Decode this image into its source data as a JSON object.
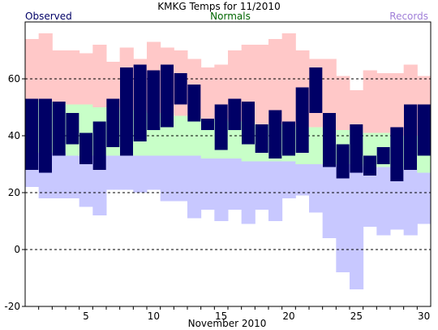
{
  "chart_data": {
    "type": "bar",
    "title": "KMKG Temps for 11/2010",
    "xlabel": "November 2010",
    "ylabel": "",
    "legend": {
      "observed": "Observed",
      "normals": "Normals",
      "records": "Records",
      "placement": "top"
    },
    "colors": {
      "observed": "#000066",
      "normals": "#c8ffc8",
      "record_high": "#ffc8c8",
      "record_low": "#c8c8ff",
      "grid": "#000000",
      "axis": "#000000"
    },
    "xlim": [
      1,
      30
    ],
    "ylim": [
      -20,
      80
    ],
    "yticks": [
      -20,
      0,
      20,
      40,
      60
    ],
    "xticks": [
      5,
      10,
      15,
      20,
      25,
      30
    ],
    "grid": "dashed horizontal at 0, 20, 40, 60",
    "days": [
      1,
      2,
      3,
      4,
      5,
      6,
      7,
      8,
      9,
      10,
      11,
      12,
      13,
      14,
      15,
      16,
      17,
      18,
      19,
      20,
      21,
      22,
      23,
      24,
      25,
      26,
      27,
      28,
      29,
      30
    ],
    "observed_high": [
      53,
      53,
      52,
      48,
      41,
      45,
      53,
      64,
      65,
      63,
      65,
      62,
      58,
      46,
      51,
      53,
      52,
      44,
      49,
      45,
      57,
      64,
      48,
      37,
      44,
      33,
      36,
      43,
      51,
      51
    ],
    "observed_low": [
      28,
      27,
      33,
      37,
      30,
      28,
      36,
      33,
      38,
      42,
      43,
      51,
      45,
      42,
      35,
      42,
      37,
      34,
      32,
      33,
      34,
      48,
      29,
      25,
      27,
      26,
      30,
      24,
      28,
      33
    ],
    "normal_high": [
      53,
      52,
      52,
      51,
      51,
      50,
      50,
      49,
      49,
      48,
      48,
      47,
      47,
      46,
      46,
      45,
      45,
      44,
      44,
      44,
      43,
      43,
      42,
      42,
      42,
      41,
      41,
      40,
      40,
      40
    ],
    "normal_low": [
      34,
      34,
      34,
      33,
      33,
      33,
      33,
      33,
      33,
      33,
      33,
      33,
      33,
      32,
      32,
      32,
      31,
      31,
      31,
      31,
      30,
      30,
      30,
      30,
      30,
      29,
      29,
      29,
      28,
      27
    ],
    "record_high": [
      74,
      76,
      70,
      70,
      69,
      72,
      66,
      71,
      67,
      73,
      71,
      70,
      67,
      64,
      65,
      70,
      72,
      72,
      74,
      76,
      70,
      67,
      67,
      61,
      56,
      63,
      62,
      62,
      65,
      61
    ],
    "record_low": [
      22,
      18,
      18,
      18,
      15,
      12,
      21,
      21,
      20,
      21,
      17,
      17,
      11,
      14,
      10,
      14,
      9,
      14,
      10,
      18,
      19,
      13,
      4,
      -8,
      -14,
      8,
      5,
      7,
      5,
      9
    ]
  }
}
